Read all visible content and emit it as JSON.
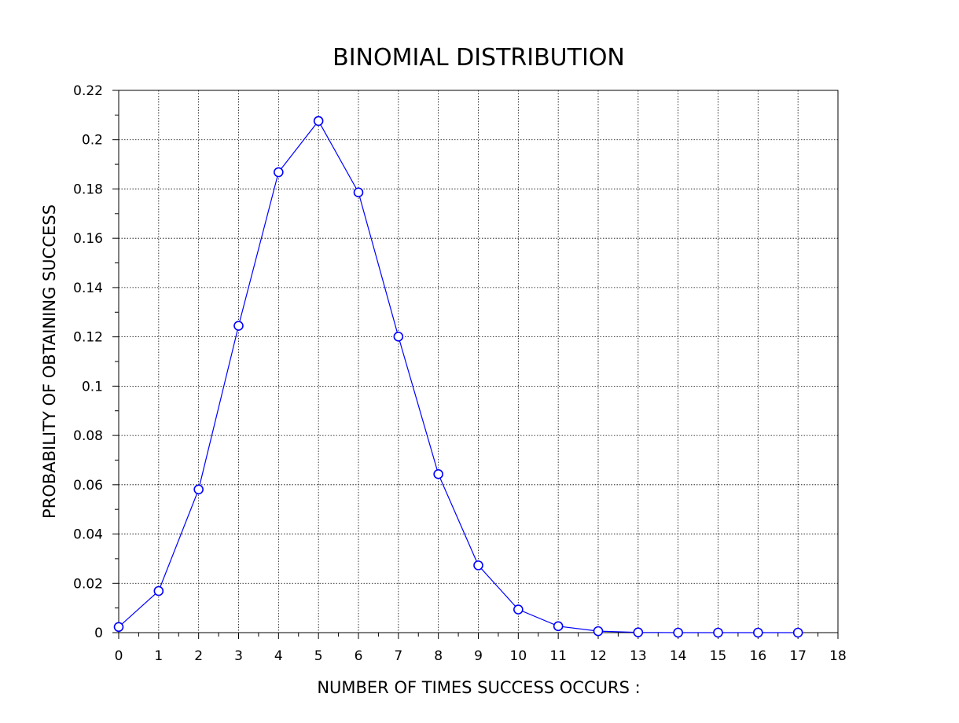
{
  "chart_data": {
    "type": "line",
    "title": "BINOMIAL DISTRIBUTION",
    "xlabel": "NUMBER OF TIMES SUCCESS OCCURS :",
    "ylabel": "PROBABILITY OF OBTAINING SUCCESS",
    "xlim": [
      0,
      18
    ],
    "ylim": [
      0,
      0.22
    ],
    "x_ticks": [
      "0",
      "1",
      "2",
      "3",
      "4",
      "5",
      "6",
      "7",
      "8",
      "9",
      "10",
      "11",
      "12",
      "13",
      "14",
      "15",
      "16",
      "17",
      "18"
    ],
    "y_ticks": [
      "0",
      "0.02",
      "0.04",
      "0.06",
      "0.08",
      "0.1",
      "0.12",
      "0.14",
      "0.16",
      "0.18",
      "0.2",
      "0.22"
    ],
    "grid": true,
    "marker": "circle",
    "colors": {
      "series": "#0000ff",
      "grid": "#000000",
      "axes": "#000000"
    },
    "series": [
      {
        "x": [
          0,
          1,
          2,
          3,
          4,
          5,
          6,
          7,
          8,
          9,
          10,
          11,
          12,
          13,
          14,
          15,
          16,
          17
        ],
        "values": [
          0.0023,
          0.0169,
          0.0581,
          0.1245,
          0.1868,
          0.2076,
          0.1786,
          0.1201,
          0.0643,
          0.0273,
          0.0094,
          0.0026,
          0.0006,
          0.0001,
          0.0,
          0.0,
          0.0,
          0.0
        ]
      }
    ]
  }
}
